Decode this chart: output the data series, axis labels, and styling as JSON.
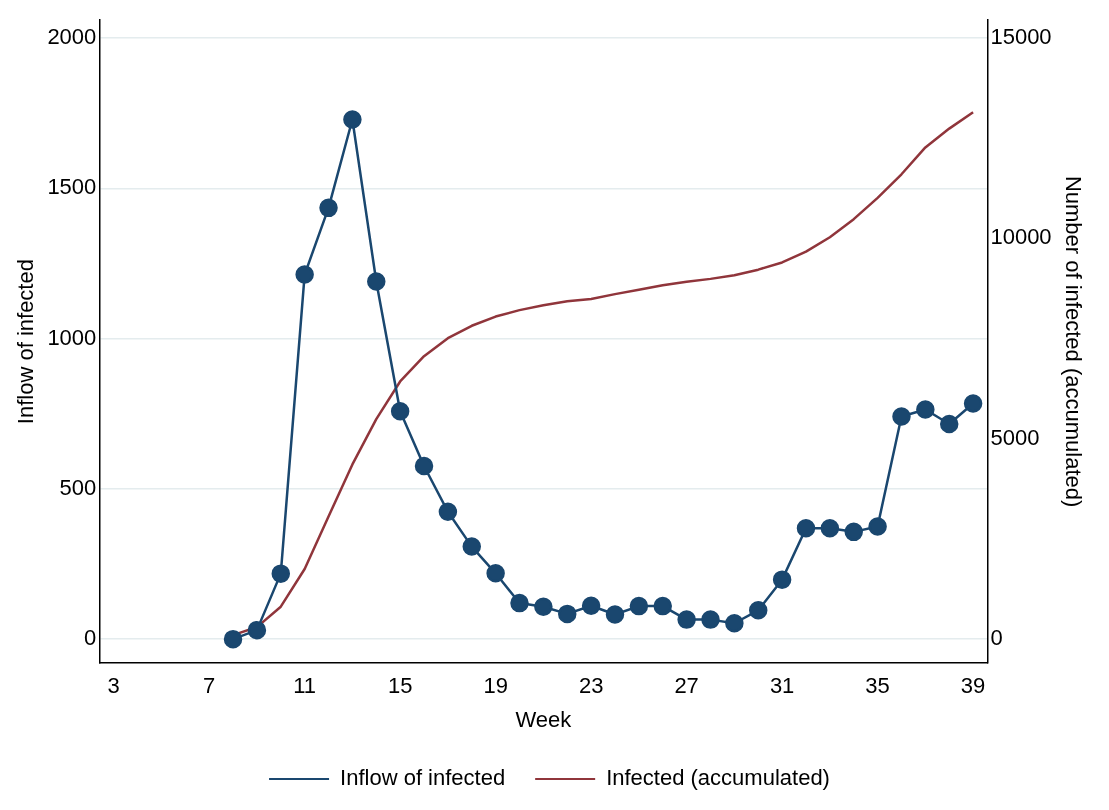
{
  "chart_data": {
    "type": "line",
    "xlabel": "Week",
    "ylabel": "Inflow of infected",
    "y2label": "Number of infected (accumulated)",
    "x": [
      8,
      9,
      10,
      11,
      12,
      13,
      14,
      15,
      16,
      17,
      18,
      19,
      20,
      21,
      22,
      23,
      24,
      25,
      26,
      27,
      28,
      29,
      30,
      31,
      32,
      33,
      34,
      35,
      36,
      37,
      38,
      39
    ],
    "series": [
      {
        "name": "Inflow of infected",
        "color": "#1a476f",
        "marker": "circle",
        "values": [
          0,
          30,
          218,
          1213,
          1435,
          1729,
          1190,
          758,
          576,
          424,
          308,
          219,
          120,
          108,
          84,
          111,
          82,
          110,
          110,
          65,
          65,
          53,
          96,
          198,
          369,
          369,
          357,
          375,
          741,
          764,
          716,
          784
        ]
      },
      {
        "name": "Infected (accumulated)",
        "color": "#90353b",
        "axis": "y2",
        "marker": "none",
        "values": [
          100,
          300,
          810,
          1750,
          3060,
          4360,
          5490,
          6430,
          7060,
          7510,
          7820,
          8050,
          8210,
          8330,
          8430,
          8490,
          8610,
          8720,
          8830,
          8920,
          8990,
          9080,
          9220,
          9400,
          9670,
          10030,
          10480,
          11010,
          11600,
          12270,
          12740,
          13150
        ]
      }
    ],
    "xlim": [
      2.4,
      39.6
    ],
    "xticks": [
      3,
      7,
      11,
      15,
      19,
      23,
      27,
      31,
      35,
      39
    ],
    "ylim": [
      -80,
      2060
    ],
    "yticks": [
      0,
      500,
      1000,
      1500,
      2000
    ],
    "y2lim": [
      -600,
      15450
    ],
    "y2ticks": [
      0,
      5000,
      10000,
      15000
    ],
    "grid": "y",
    "legend": "bottom",
    "line_style": "solid"
  }
}
